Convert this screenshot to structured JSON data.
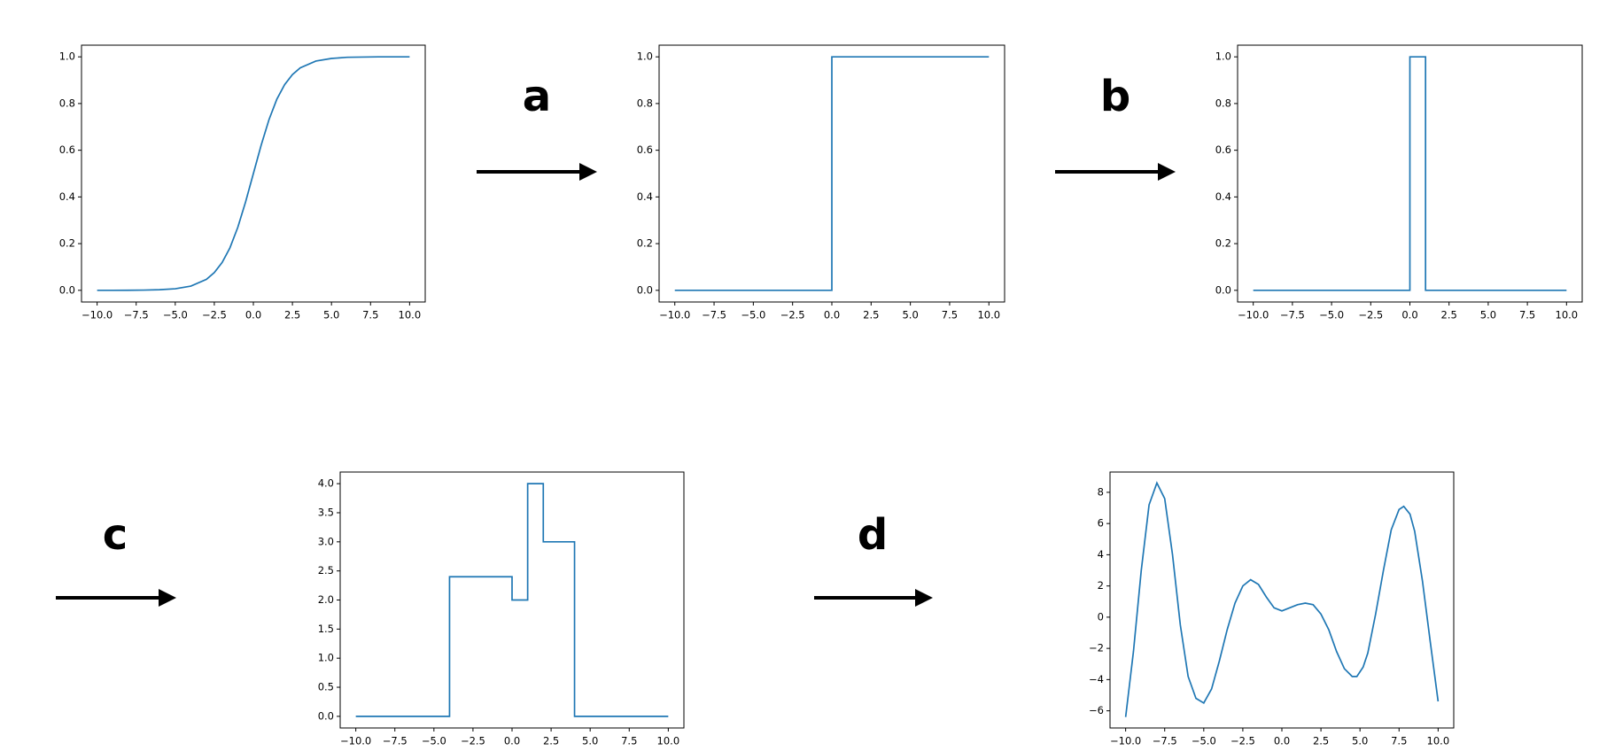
{
  "labels": [
    "a",
    "b",
    "c",
    "d"
  ],
  "chart_data": [
    {
      "type": "line",
      "color": "#1f77b4",
      "x": [
        -10,
        -9,
        -8,
        -7,
        -6,
        -5,
        -4,
        -3,
        -2.5,
        -2,
        -1.5,
        -1,
        -0.5,
        0,
        0.5,
        1,
        1.5,
        2,
        2.5,
        3,
        4,
        5,
        6,
        7,
        8,
        9,
        10
      ],
      "values": [
        0.0,
        0.0001,
        0.0003,
        0.0009,
        0.0025,
        0.0067,
        0.018,
        0.047,
        0.076,
        0.119,
        0.182,
        0.269,
        0.378,
        0.5,
        0.622,
        0.731,
        0.818,
        0.881,
        0.924,
        0.953,
        0.982,
        0.993,
        0.998,
        0.999,
        1.0,
        1.0,
        1.0
      ],
      "xlim": [
        -11,
        11
      ],
      "ylim": [
        -0.05,
        1.05
      ],
      "xticks": [
        {
          "value": -10,
          "label": "−10.0"
        },
        {
          "value": -7.5,
          "label": "−7.5"
        },
        {
          "value": -5,
          "label": "−5.0"
        },
        {
          "value": -2.5,
          "label": "−2.5"
        },
        {
          "value": 0,
          "label": "0.0"
        },
        {
          "value": 2.5,
          "label": "2.5"
        },
        {
          "value": 5,
          "label": "5.0"
        },
        {
          "value": 7.5,
          "label": "7.5"
        },
        {
          "value": 10,
          "label": "10.0"
        }
      ],
      "yticks": [
        {
          "value": 0,
          "label": "0.0"
        },
        {
          "value": 0.2,
          "label": "0.2"
        },
        {
          "value": 0.4,
          "label": "0.4"
        },
        {
          "value": 0.6,
          "label": "0.6"
        },
        {
          "value": 0.8,
          "label": "0.8"
        },
        {
          "value": 1,
          "label": "1.0"
        }
      ]
    },
    {
      "type": "line",
      "color": "#1f77b4",
      "x": [
        -10,
        0,
        0,
        10
      ],
      "values": [
        0,
        0,
        1,
        1
      ],
      "xlim": [
        -11,
        11
      ],
      "ylim": [
        -0.05,
        1.05
      ],
      "xticks": [
        {
          "value": -10,
          "label": "−10.0"
        },
        {
          "value": -7.5,
          "label": "−7.5"
        },
        {
          "value": -5,
          "label": "−5.0"
        },
        {
          "value": -2.5,
          "label": "−2.5"
        },
        {
          "value": 0,
          "label": "0.0"
        },
        {
          "value": 2.5,
          "label": "2.5"
        },
        {
          "value": 5,
          "label": "5.0"
        },
        {
          "value": 7.5,
          "label": "7.5"
        },
        {
          "value": 10,
          "label": "10.0"
        }
      ],
      "yticks": [
        {
          "value": 0,
          "label": "0.0"
        },
        {
          "value": 0.2,
          "label": "0.2"
        },
        {
          "value": 0.4,
          "label": "0.4"
        },
        {
          "value": 0.6,
          "label": "0.6"
        },
        {
          "value": 0.8,
          "label": "0.8"
        },
        {
          "value": 1,
          "label": "1.0"
        }
      ]
    },
    {
      "type": "line",
      "color": "#1f77b4",
      "x": [
        -10,
        0,
        0,
        1,
        1,
        10
      ],
      "values": [
        0,
        0,
        1,
        1,
        0,
        0
      ],
      "xlim": [
        -11,
        11
      ],
      "ylim": [
        -0.05,
        1.05
      ],
      "xticks": [
        {
          "value": -10,
          "label": "−10.0"
        },
        {
          "value": -7.5,
          "label": "−7.5"
        },
        {
          "value": -5,
          "label": "−5.0"
        },
        {
          "value": -2.5,
          "label": "−2.5"
        },
        {
          "value": 0,
          "label": "0.0"
        },
        {
          "value": 2.5,
          "label": "2.5"
        },
        {
          "value": 5,
          "label": "5.0"
        },
        {
          "value": 7.5,
          "label": "7.5"
        },
        {
          "value": 10,
          "label": "10.0"
        }
      ],
      "yticks": [
        {
          "value": 0,
          "label": "0.0"
        },
        {
          "value": 0.2,
          "label": "0.2"
        },
        {
          "value": 0.4,
          "label": "0.4"
        },
        {
          "value": 0.6,
          "label": "0.6"
        },
        {
          "value": 0.8,
          "label": "0.8"
        },
        {
          "value": 1,
          "label": "1.0"
        }
      ]
    },
    {
      "type": "line",
      "color": "#1f77b4",
      "x": [
        -10,
        -4,
        -4,
        0,
        0,
        1,
        1,
        2,
        2,
        4,
        4,
        10
      ],
      "values": [
        0,
        0,
        2.4,
        2.4,
        2,
        2,
        4,
        4,
        3,
        3,
        0,
        0
      ],
      "xlim": [
        -11,
        11
      ],
      "ylim": [
        -0.2,
        4.2
      ],
      "xticks": [
        {
          "value": -10,
          "label": "−10.0"
        },
        {
          "value": -7.5,
          "label": "−7.5"
        },
        {
          "value": -5,
          "label": "−5.0"
        },
        {
          "value": -2.5,
          "label": "−2.5"
        },
        {
          "value": 0,
          "label": "0.0"
        },
        {
          "value": 2.5,
          "label": "2.5"
        },
        {
          "value": 5,
          "label": "5.0"
        },
        {
          "value": 7.5,
          "label": "7.5"
        },
        {
          "value": 10,
          "label": "10.0"
        }
      ],
      "yticks": [
        {
          "value": 0,
          "label": "0.0"
        },
        {
          "value": 0.5,
          "label": "0.5"
        },
        {
          "value": 1,
          "label": "1.0"
        },
        {
          "value": 1.5,
          "label": "1.5"
        },
        {
          "value": 2,
          "label": "2.0"
        },
        {
          "value": 2.5,
          "label": "2.5"
        },
        {
          "value": 3,
          "label": "3.0"
        },
        {
          "value": 3.5,
          "label": "3.5"
        },
        {
          "value": 4,
          "label": "4.0"
        }
      ]
    },
    {
      "type": "line",
      "color": "#1f77b4",
      "x": [
        -10,
        -9.5,
        -9,
        -8.5,
        -8,
        -7.5,
        -7,
        -6.5,
        -6,
        -5.5,
        -5,
        -4.5,
        -4,
        -3.5,
        -3,
        -2.5,
        -2,
        -1.5,
        -1,
        -0.5,
        0,
        0.5,
        1,
        1.5,
        2,
        2.5,
        3,
        3.5,
        4,
        4.5,
        4.8,
        5.2,
        5.5,
        6,
        6.5,
        7,
        7.5,
        7.8,
        8.2,
        8.5,
        9,
        9.5,
        10
      ],
      "values": [
        -6.4,
        -2.2,
        3.0,
        7.2,
        8.6,
        7.6,
        4.0,
        -0.5,
        -3.8,
        -5.2,
        -5.5,
        -4.6,
        -2.8,
        -0.8,
        0.9,
        2.0,
        2.4,
        2.1,
        1.3,
        0.6,
        0.4,
        0.6,
        0.8,
        0.9,
        0.8,
        0.2,
        -0.8,
        -2.2,
        -3.3,
        -3.8,
        -3.8,
        -3.2,
        -2.3,
        0.2,
        3.0,
        5.6,
        6.9,
        7.1,
        6.6,
        5.5,
        2.3,
        -1.6,
        -5.4
      ],
      "xlim": [
        -11,
        11
      ],
      "ylim": [
        -7.1,
        9.3
      ],
      "xticks": [
        {
          "value": -10,
          "label": "−10.0"
        },
        {
          "value": -7.5,
          "label": "−7.5"
        },
        {
          "value": -5,
          "label": "−5.0"
        },
        {
          "value": -2.5,
          "label": "−2.5"
        },
        {
          "value": 0,
          "label": "0.0"
        },
        {
          "value": 2.5,
          "label": "2.5"
        },
        {
          "value": 5,
          "label": "5.0"
        },
        {
          "value": 7.5,
          "label": "7.5"
        },
        {
          "value": 10,
          "label": "10.0"
        }
      ],
      "yticks": [
        {
          "value": -6,
          "label": "−6"
        },
        {
          "value": -4,
          "label": "−4"
        },
        {
          "value": -2,
          "label": "−2"
        },
        0,
        2,
        4,
        6,
        8
      ]
    }
  ]
}
